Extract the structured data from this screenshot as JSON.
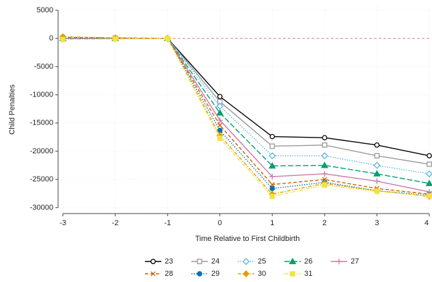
{
  "chart_data": {
    "type": "line",
    "y_label": "Child Penalties",
    "x_label": "Time Relative to First Childbirth",
    "x": [
      -3,
      -2,
      -1,
      0,
      1,
      2,
      3,
      4
    ],
    "xlim": [
      -3,
      4
    ],
    "xticks": [
      -3,
      -2,
      -1,
      0,
      1,
      2,
      3,
      4
    ],
    "ylim": [
      -30800,
      5600
    ],
    "yticks": [
      5000,
      0,
      -5000,
      -10000,
      -15000,
      -20000,
      -25000,
      -30000
    ],
    "grid": true,
    "reference_line": {
      "value": 0,
      "color": "#d9808a"
    },
    "series": [
      {
        "name": "23",
        "color": "#000000",
        "marker": "circle-open",
        "dash": "solid",
        "values": [
          0,
          0,
          0,
          -10300,
          -17400,
          -17600,
          -18900,
          -20800
        ]
      },
      {
        "name": "24",
        "color": "#999999",
        "marker": "square-open",
        "dash": "solid",
        "values": [
          0,
          0,
          0,
          -11200,
          -19100,
          -18900,
          -20800,
          -22300
        ]
      },
      {
        "name": "25",
        "color": "#56b4e9",
        "marker": "diamond-open",
        "dash": "dot",
        "values": [
          0,
          0,
          0,
          -12000,
          -20800,
          -20800,
          -22500,
          -24000
        ]
      },
      {
        "name": "26",
        "color": "#009e73",
        "marker": "triangle",
        "dash": "longdash",
        "values": [
          0,
          0,
          0,
          -13200,
          -22600,
          -22500,
          -24000,
          -25700
        ]
      },
      {
        "name": "27",
        "color": "#cc79a7",
        "marker": "plus",
        "dash": "solid",
        "values": [
          0,
          0,
          0,
          -14500,
          -24500,
          -24000,
          -25300,
          -27200
        ]
      },
      {
        "name": "28",
        "color": "#d55e00",
        "marker": "x",
        "dash": "dash",
        "values": [
          200,
          100,
          0,
          -15400,
          -25900,
          -25000,
          -26600,
          -27600
        ]
      },
      {
        "name": "29",
        "color": "#0072b2",
        "marker": "circle",
        "dash": "dot",
        "values": [
          -100,
          0,
          0,
          -16300,
          -26600,
          -25500,
          -27000,
          -27800
        ]
      },
      {
        "name": "30",
        "color": "#e69f00",
        "marker": "diamond",
        "dash": "dashdot",
        "values": [
          300,
          100,
          0,
          -17200,
          -27600,
          -25700,
          -27000,
          -28000
        ]
      },
      {
        "name": "31",
        "color": "#f0e442",
        "marker": "square",
        "dash": "dashdot",
        "values": [
          -200,
          -100,
          0,
          -17700,
          -28000,
          -26000,
          -27100,
          -27900
        ]
      }
    ]
  }
}
